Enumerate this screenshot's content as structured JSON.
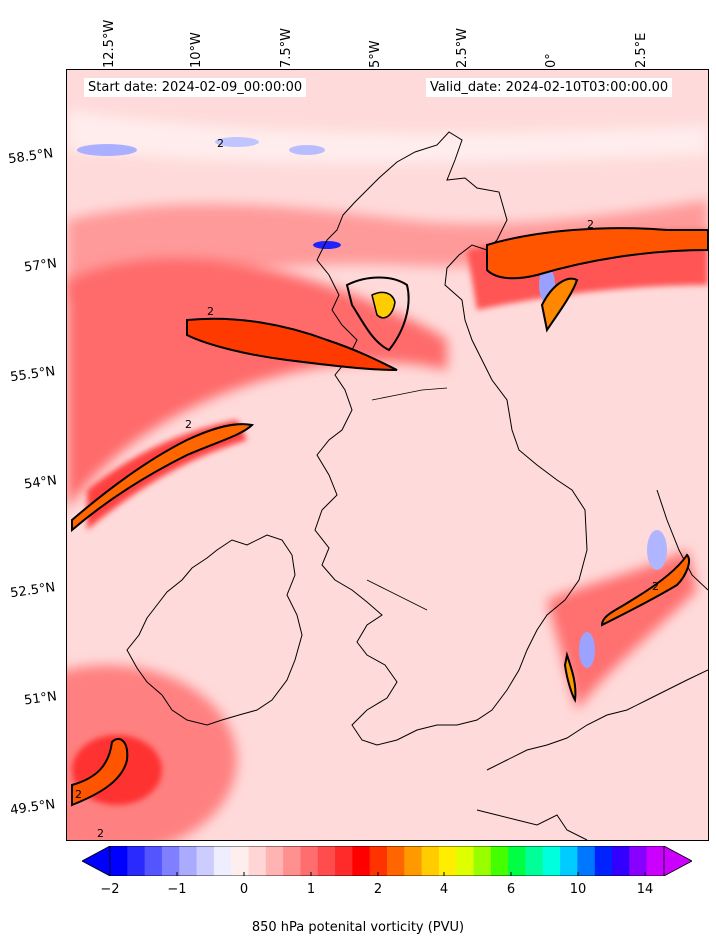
{
  "map": {
    "start_label": "Start date: 2024-02-09_00:00:00",
    "valid_label": "Valid_date: 2024-02-10T03:00:00.00",
    "longitude_labels": [
      "12.5°W",
      "10°W",
      "7.5°W",
      "5°W",
      "2.5°W",
      "0°",
      "2.5°E"
    ],
    "latitude_labels": [
      "58.5°N",
      "57°N",
      "55.5°N",
      "54°N",
      "52.5°N",
      "51°N",
      "49.5°N"
    ],
    "contour_label": "2",
    "colorbar": {
      "label": "850 hPa potenital vorticity (PVU)",
      "ticks": [
        "−2",
        "−1",
        "0",
        "1",
        "2",
        "4",
        "6",
        "10",
        "14"
      ],
      "colors": [
        "#0000ff",
        "#2a2aff",
        "#5555ff",
        "#7f7fff",
        "#aaaaff",
        "#ccccff",
        "#eeeeff",
        "#ffeeee",
        "#ffd5d5",
        "#ffb3b3",
        "#ff9090",
        "#ff6e6e",
        "#ff4c4c",
        "#ff2a2a",
        "#ff0000",
        "#ff3300",
        "#ff6600",
        "#ff9900",
        "#ffcc00",
        "#ffee00",
        "#ddff00",
        "#99ff00",
        "#44ff00",
        "#00ff44",
        "#00ff99",
        "#00ffdd",
        "#00ccff",
        "#0077ff",
        "#0022ff",
        "#3300ff",
        "#8800ff",
        "#cc00ff"
      ],
      "extend": "both"
    }
  }
}
